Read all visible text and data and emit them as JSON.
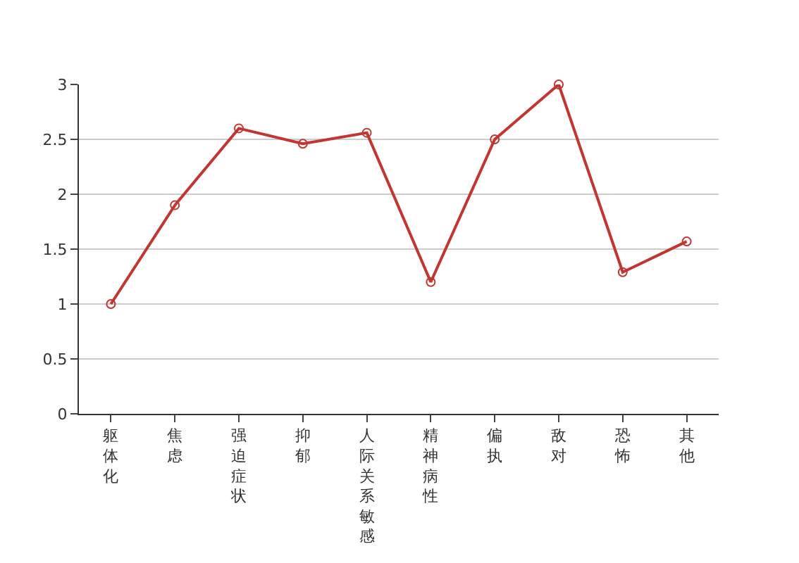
{
  "chart_data": {
    "type": "line",
    "categories": [
      "躯体化",
      "焦虑",
      "强迫症状",
      "抑郁",
      "人际关系敏感",
      "精神病性",
      "偏执",
      "敌对",
      "恐怖",
      "其他"
    ],
    "series": [
      {
        "color": "#c23531",
        "values": [
          1,
          1.9,
          2.6,
          2.46,
          2.56,
          1.2,
          2.5,
          3,
          1.29,
          1.57
        ]
      }
    ],
    "ylim": [
      0,
      3
    ],
    "yticks": [
      0,
      0.5,
      1,
      1.5,
      2,
      2.5,
      3
    ],
    "grid": "y",
    "marker": "circle",
    "line_style": "solid"
  }
}
